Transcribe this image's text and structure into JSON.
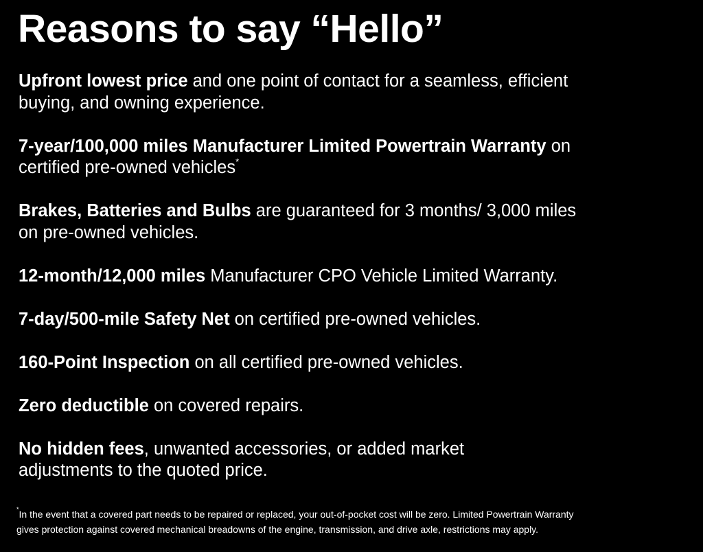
{
  "title": "Reasons to say “Hello”",
  "items": [
    {
      "bold": "Upfront lowest price",
      "rest": " and one point of contact for a seamless, efficient",
      "rest2": "buying, and owning experience."
    },
    {
      "bold": "7-year/100,000 miles Manufacturer Limited Powertrain Warranty",
      "rest": " on",
      "rest2": "certified pre-owned vehicles",
      "sup": "*"
    },
    {
      "bold": "Brakes, Batteries and Bulbs",
      "rest": " are guaranteed for 3 months/ 3,000 miles",
      "rest2": "on pre-owned vehicles."
    },
    {
      "bold": "12-month/12,000 miles",
      "rest": " Manufacturer CPO Vehicle Limited Warranty."
    },
    {
      "bold": "7-day/500-mile Safety Net",
      "rest": " on certified pre-owned vehicles."
    },
    {
      "bold": "160-Point Inspection",
      "rest": " on all certified pre-owned vehicles."
    },
    {
      "bold": "Zero deductible",
      "rest": " on covered repairs."
    },
    {
      "bold": "No hidden fees",
      "rest": ", unwanted accessories, or added market",
      "rest2": "adjustments to the quoted price."
    }
  ],
  "footnote": {
    "mark": "*",
    "line1": "In the event that a covered part needs to be repaired or replaced, your out-of-pocket cost will be zero. Limited Powertrain Warranty",
    "line2": "gives protection against covered mechanical breadowns of the engine, transmission, and drive axle, restrictions may apply."
  }
}
